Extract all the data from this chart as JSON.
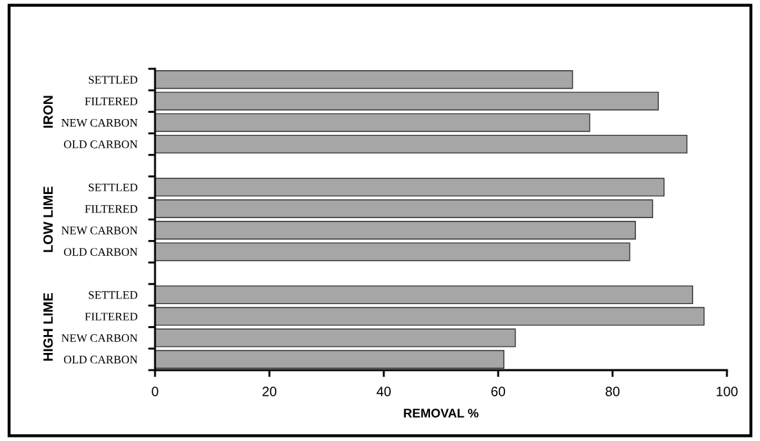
{
  "chart_data": {
    "type": "bar",
    "orientation": "horizontal",
    "xlabel": "REMOVAL %",
    "categories": [
      "SETTLED",
      "FILTERED",
      "NEW CARBON",
      "OLD CARBON",
      null,
      "SETTLED",
      "FILTERED",
      "NEW CARBON",
      "OLD CARBON",
      null,
      "SETTLED",
      "FILTERED",
      "NEW CARBON",
      "OLD CARBON"
    ],
    "values": [
      73,
      88,
      76,
      93,
      null,
      89,
      87,
      84,
      83,
      null,
      94,
      96,
      63,
      61
    ],
    "color": "#a6a6a6",
    "annotations": [
      "IRON",
      "LOW LIME",
      "HIGH LIME"
    ],
    "xlim": [
      0,
      100
    ],
    "xticks": [
      0,
      20,
      40,
      60,
      80,
      100
    ],
    "grid": false,
    "legend": false
  }
}
